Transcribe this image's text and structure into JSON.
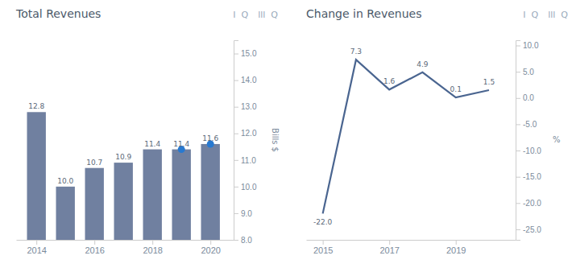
{
  "chart_data": [
    {
      "type": "bar",
      "title": "Total Revenues",
      "ylabel": "Bills $",
      "annotations": [
        "Ⅰ  Q",
        "lll  Q"
      ],
      "x": [
        2014,
        2015,
        2016,
        2017,
        2018,
        2019,
        2020
      ],
      "series": [
        {
          "type": "bar",
          "color": "#7080a0",
          "values": [
            12.8,
            10.0,
            10.7,
            10.9,
            11.4,
            11.4,
            11.6
          ],
          "value_labels": [
            "12.8",
            "10.0",
            "10.7",
            "10.9",
            "11.4",
            "11.4",
            "11.6"
          ]
        },
        {
          "type": "scatter",
          "marker": "circle",
          "color": "#2879d0",
          "values": [
            null,
            null,
            null,
            null,
            null,
            11.4,
            11.6
          ]
        }
      ],
      "data_labels": true,
      "xlim": [
        2013.3,
        2020.8
      ],
      "xticks": [
        2014,
        2016,
        2018,
        2020
      ],
      "ylim": [
        8.0,
        15.5
      ],
      "yticks": [
        {
          "value": 8.0,
          "label": "8.0"
        },
        {
          "value": 9.0,
          "label": "9.0"
        },
        {
          "value": 10.0,
          "label": "10.0"
        },
        {
          "value": 11.0,
          "label": "11.0"
        },
        {
          "value": 12.0,
          "label": "12.0"
        },
        {
          "value": 13.0,
          "label": "13.0"
        },
        {
          "value": 14.0,
          "label": "14.0"
        },
        {
          "value": 15.0,
          "label": "15.0"
        }
      ]
    },
    {
      "type": "line",
      "title": "Change in Revenues",
      "ylabel": "%",
      "annotations": [
        "Ⅰ  Q",
        "lll  Q"
      ],
      "x": [
        2015,
        2016,
        2017,
        2018,
        2019,
        2020
      ],
      "values": [
        -22.0,
        7.3,
        1.6,
        4.9,
        0.1,
        1.5
      ],
      "value_labels": [
        "-22.0",
        "7.3",
        "1.6",
        "4.9",
        "0.1",
        "1.5"
      ],
      "color": "#4a6590",
      "data_labels": true,
      "xlim": [
        2014.5,
        2020.8
      ],
      "xticks": [
        2015,
        2017,
        2019
      ],
      "ylim": [
        -27.0,
        11.0
      ],
      "yticks": [
        {
          "value": -25.0,
          "label": "-25.0"
        },
        {
          "value": -20.0,
          "label": "-20.0"
        },
        {
          "value": -15.0,
          "label": "-15.0"
        },
        {
          "value": -10.0,
          "label": "-10.0"
        },
        {
          "value": -5.0,
          "label": "-5.0"
        },
        {
          "value": 0.0,
          "label": "0.0"
        },
        {
          "value": 5.0,
          "label": "5.0"
        },
        {
          "value": 10.0,
          "label": "10.0"
        }
      ]
    }
  ]
}
